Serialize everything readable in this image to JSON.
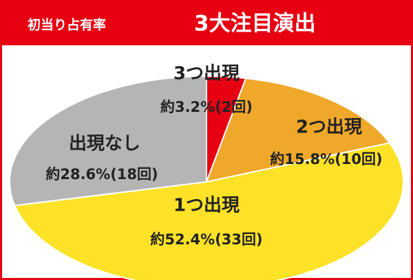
{
  "chart_data": {
    "type": "pie",
    "title": "初当り占有率",
    "subtitle": "3大注目演出",
    "categories": [
      "3つ出現",
      "2つ出現",
      "1つ出現",
      "出現なし"
    ],
    "values": [
      3.2,
      15.8,
      52.4,
      28.6
    ],
    "value_labels": [
      "約3.2%(2回)",
      "約15.8%(10回)",
      "約52.4%(33回)",
      "約28.6%(18回)"
    ],
    "colors": [
      "#e60012",
      "#f0a82a",
      "#fde227",
      "#b5b5b5"
    ]
  }
}
